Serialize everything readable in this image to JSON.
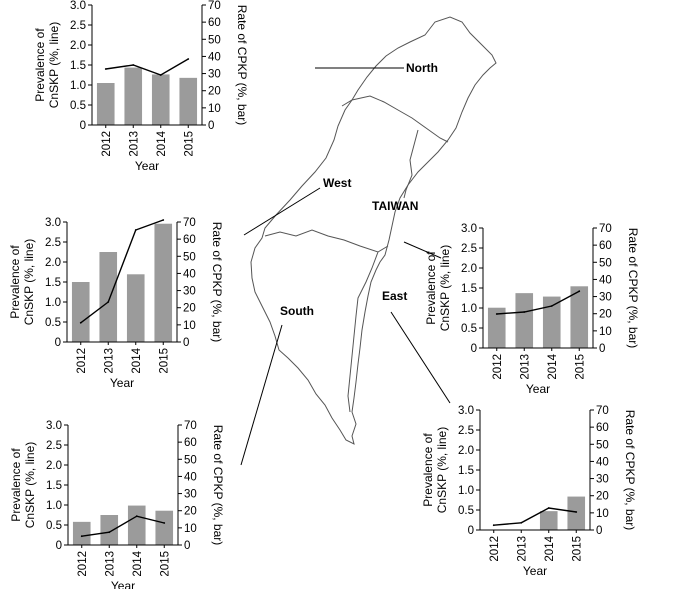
{
  "map": {
    "country_label": "TAIWAN",
    "regions": [
      "North",
      "West",
      "South",
      "East"
    ]
  },
  "chart_data": [
    {
      "type": "bar",
      "region": "North",
      "categories": [
        "2012",
        "2013",
        "2014",
        "2015"
      ],
      "line_series": {
        "values": [
          1.4,
          1.5,
          1.25,
          1.65
        ],
        "axis": "left"
      },
      "bar_series": {
        "values": [
          24.5,
          33.5,
          29.5,
          27.5
        ],
        "axis": "right"
      },
      "xlabel": "Year",
      "ylabel_left": "Prevalence of CnSKP (%, line)",
      "ylabel_right": "Rate of CPKP (%, bar)",
      "ylim_left": [
        0,
        3.0
      ],
      "ylim_right": [
        0,
        70
      ],
      "left_ticks": [
        "0",
        "0.5",
        "1.0",
        "1.5",
        "2.0",
        "2.5",
        "3.0"
      ],
      "right_ticks": [
        "0",
        "10",
        "20",
        "30",
        "40",
        "50",
        "60",
        "70"
      ]
    },
    {
      "type": "bar",
      "region": "West",
      "categories": [
        "2012",
        "2013",
        "2014",
        "2015"
      ],
      "line_series": {
        "values": [
          0.48,
          1.0,
          2.8,
          3.05
        ],
        "axis": "left"
      },
      "bar_series": {
        "values": [
          35,
          52.5,
          39.5,
          69
        ],
        "axis": "right"
      },
      "xlabel": "Year",
      "ylabel_left": "Prevalence of CnSKP (%, line)",
      "ylabel_right": "Rate of CPKP (%, bar)",
      "ylim_left": [
        0,
        3.0
      ],
      "ylim_right": [
        0,
        70
      ],
      "left_ticks": [
        "0",
        "0.5",
        "1.0",
        "1.5",
        "2.0",
        "2.5",
        "3.0"
      ],
      "right_ticks": [
        "0",
        "10",
        "20",
        "30",
        "40",
        "50",
        "60",
        "70"
      ]
    },
    {
      "type": "bar",
      "region": "East",
      "categories": [
        "2012",
        "2013",
        "2014",
        "2015"
      ],
      "line_series": {
        "values": [
          0.85,
          0.9,
          1.05,
          1.42
        ],
        "axis": "left"
      },
      "bar_series": {
        "values": [
          23.5,
          32,
          30,
          36
        ],
        "axis": "right"
      },
      "xlabel": "Year",
      "ylabel_left": "Prevalence of CnSKP (%, line)",
      "ylabel_right": "Rate of CPKP (%, bar)",
      "ylim_left": [
        0,
        3.0
      ],
      "ylim_right": [
        0,
        70
      ],
      "left_ticks": [
        "0",
        "0.5",
        "1.0",
        "1.5",
        "2.0",
        "2.5",
        "3.0"
      ],
      "right_ticks": [
        "0",
        "10",
        "20",
        "30",
        "40",
        "50",
        "60",
        "70"
      ]
    },
    {
      "type": "bar",
      "region": "South",
      "categories": [
        "2012",
        "2013",
        "2014",
        "2015"
      ],
      "line_series": {
        "values": [
          0.22,
          0.32,
          0.72,
          0.55
        ],
        "axis": "left"
      },
      "bar_series": {
        "values": [
          13.5,
          17.5,
          23,
          20
        ],
        "axis": "right"
      },
      "xlabel": "Year",
      "ylabel_left": "Prevalence of CnSKP (%, line)",
      "ylabel_right": "Rate of CPKP (%, bar)",
      "ylim_left": [
        0,
        3.0
      ],
      "ylim_right": [
        0,
        70
      ],
      "left_ticks": [
        "0",
        "0.5",
        "1.0",
        "1.5",
        "2.0",
        "2.5",
        "3.0"
      ],
      "right_ticks": [
        "0",
        "10",
        "20",
        "30",
        "40",
        "50",
        "60",
        "70"
      ]
    },
    {
      "type": "bar",
      "region": "Taiwan",
      "categories": [
        "2012",
        "2013",
        "2014",
        "2015"
      ],
      "line_series": {
        "values": [
          0.12,
          0.18,
          0.55,
          0.45
        ],
        "axis": "left"
      },
      "bar_series": {
        "values": [
          0,
          0,
          11,
          19.5
        ],
        "axis": "right"
      },
      "xlabel": "Year",
      "ylabel_left": "Prevalence of CnSKP (%, line)",
      "ylabel_right": "Rate of CPKP (%, bar)",
      "ylim_left": [
        0,
        3.0
      ],
      "ylim_right": [
        0,
        70
      ],
      "left_ticks": [
        "0",
        "0.5",
        "1.0",
        "1.5",
        "2.0",
        "2.5",
        "3.0"
      ],
      "right_ticks": [
        "0",
        "10",
        "20",
        "30",
        "40",
        "50",
        "60",
        "70"
      ]
    }
  ]
}
